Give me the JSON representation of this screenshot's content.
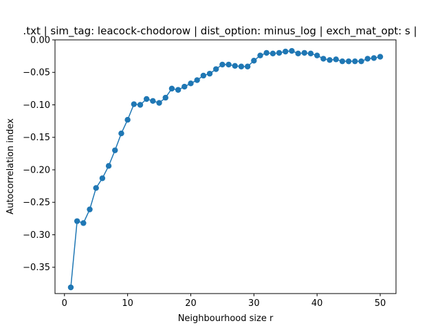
{
  "chart_data": {
    "type": "line",
    "title": ".txt | sim_tag: leacock-chodorow | dist_option: minus_log | exch_mat_opt: s |",
    "xlabel": "Neighbourhood size r",
    "ylabel": "Autocorrelation index",
    "xlim": [
      -1.5,
      52.5
    ],
    "ylim": [
      -0.3905,
      0.0
    ],
    "xticks": [
      0,
      10,
      20,
      30,
      40,
      50
    ],
    "yticks": [
      0.0,
      -0.05,
      -0.1,
      -0.15,
      -0.2,
      -0.25,
      -0.3,
      -0.35
    ],
    "ytick_labels": [
      "0.00",
      "−0.05",
      "−0.10",
      "−0.15",
      "−0.20",
      "−0.25",
      "−0.30",
      "−0.35"
    ],
    "grid": false,
    "color": "#1f77b4",
    "markers": "circle",
    "x": [
      1,
      2,
      3,
      4,
      5,
      6,
      7,
      8,
      9,
      10,
      11,
      12,
      13,
      14,
      15,
      16,
      17,
      18,
      19,
      20,
      21,
      22,
      23,
      24,
      25,
      26,
      27,
      28,
      29,
      30,
      31,
      32,
      33,
      34,
      35,
      36,
      37,
      38,
      39,
      40,
      41,
      42,
      43,
      44,
      45,
      46,
      47,
      48,
      49,
      50
    ],
    "y": [
      -0.381,
      -0.279,
      -0.282,
      -0.261,
      -0.228,
      -0.213,
      -0.194,
      -0.17,
      -0.144,
      -0.123,
      -0.099,
      -0.1,
      -0.091,
      -0.094,
      -0.097,
      -0.089,
      -0.075,
      -0.077,
      -0.072,
      -0.067,
      -0.062,
      -0.055,
      -0.052,
      -0.045,
      -0.038,
      -0.038,
      -0.04,
      -0.041,
      -0.041,
      -0.032,
      -0.024,
      -0.02,
      -0.021,
      -0.02,
      -0.018,
      -0.017,
      -0.021,
      -0.02,
      -0.021,
      -0.024,
      -0.029,
      -0.031,
      -0.03,
      -0.033,
      -0.033,
      -0.033,
      -0.033,
      -0.029,
      -0.028,
      -0.026
    ]
  }
}
